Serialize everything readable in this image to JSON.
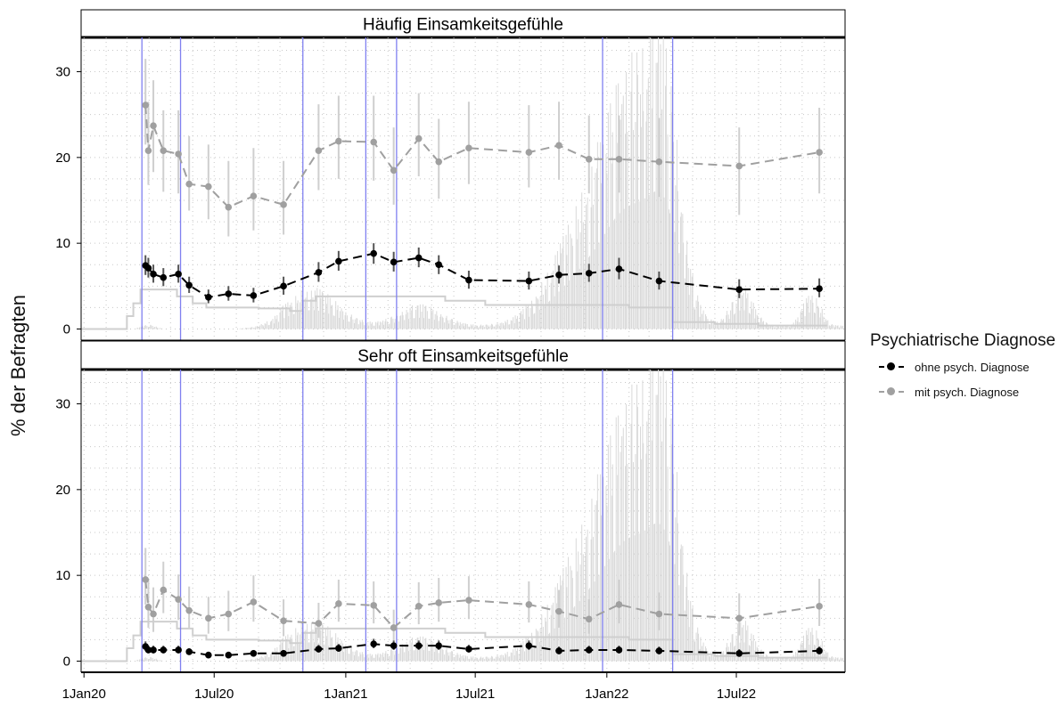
{
  "chart_data": {
    "type": "line",
    "ylabel": "% der Befragten",
    "xlabel": "",
    "x_ticks": [
      "1Jan20",
      "1Jul20",
      "1Jan21",
      "1Jul21",
      "1Jan22",
      "1Jul22"
    ],
    "x_tick_dates": [
      "2020-01-01",
      "2020-07-01",
      "2021-01-01",
      "2021-07-01",
      "2022-01-01",
      "2022-07-01"
    ],
    "xlim": [
      "2019-12-28",
      "2022-11-30"
    ],
    "ylim": [
      -1.3,
      34
    ],
    "y_ticks": [
      0,
      10,
      20,
      30
    ],
    "grid": "dotted",
    "legend": {
      "title": "Psychiatrische Diagnose",
      "position": "right",
      "entries": [
        "ohne psych. Diagnose",
        "mit psych. Diagnose"
      ]
    },
    "colors": {
      "ohne": "#000000",
      "mit": "#a0a0a0",
      "phase_lines": "#8080f0",
      "background": "#d9d9d9",
      "ci_mit": "#cfcfcf",
      "ci_ohne": "#555555"
    },
    "phase_lines": [
      "2020-03-22",
      "2020-05-15",
      "2020-11-02",
      "2021-01-29",
      "2021-03-13",
      "2021-12-26",
      "2022-04-03"
    ],
    "dates": [
      "2020-03-27",
      "2020-03-31",
      "2020-04-07",
      "2020-04-21",
      "2020-05-12",
      "2020-05-27",
      "2020-06-23",
      "2020-07-21",
      "2020-08-25",
      "2020-10-06",
      "2020-11-24",
      "2020-12-22",
      "2021-02-09",
      "2021-03-09",
      "2021-04-13",
      "2021-05-11",
      "2021-06-22",
      "2021-09-14",
      "2021-10-26",
      "2021-12-07",
      "2022-01-18",
      "2022-03-15",
      "2022-07-05",
      "2022-10-25"
    ],
    "panels": [
      {
        "title": "Häufig Einsamkeitsgefühle",
        "series": [
          {
            "name": "mit psych. Diagnose",
            "values": [
              26.1,
              20.8,
              23.7,
              20.8,
              20.4,
              16.9,
              16.6,
              14.2,
              15.5,
              14.5,
              20.8,
              21.9,
              21.8,
              18.5,
              22.2,
              19.5,
              21.1,
              20.6,
              21.4,
              19.8,
              19.8,
              19.5,
              19.0,
              20.6
            ],
            "ci": [
              [
                21.5,
                31.5
              ],
              [
                16.8,
                26.5
              ],
              [
                18.3,
                29
              ],
              [
                16,
                25.5
              ],
              [
                15.8,
                25.5
              ],
              [
                13.8,
                22.5
              ],
              [
                12.8,
                21.5
              ],
              [
                10.8,
                19.6
              ],
              [
                11.5,
                21.1
              ],
              [
                11,
                19.6
              ],
              [
                16.2,
                26.2
              ],
              [
                17.5,
                27.2
              ],
              [
                17.3,
                27.2
              ],
              [
                14.5,
                23.5
              ],
              [
                17.8,
                27.5
              ],
              [
                15.2,
                24.5
              ],
              [
                16.9,
                26.5
              ],
              [
                16.5,
                26.1
              ],
              [
                17.4,
                26.5
              ],
              [
                15.8,
                24.9
              ],
              [
                15.9,
                24.9
              ],
              [
                15.4,
                24.6
              ],
              [
                13.3,
                23.5
              ],
              [
                15.8,
                25.8
              ]
            ]
          },
          {
            "name": "ohne psych. Diagnose",
            "values": [
              7.4,
              7.1,
              6.4,
              6.0,
              6.4,
              5.1,
              3.7,
              4.1,
              3.9,
              5.0,
              6.6,
              7.9,
              8.8,
              7.8,
              8.3,
              7.5,
              5.7,
              5.6,
              6.3,
              6.5,
              7.0,
              5.6,
              4.6,
              4.7
            ],
            "ci": [
              [
                6.3,
                8.6
              ],
              [
                6,
                8.3
              ],
              [
                5.4,
                7.5
              ],
              [
                5,
                7.1
              ],
              [
                5.4,
                7.5
              ],
              [
                4.2,
                6.1
              ],
              [
                3,
                4.6
              ],
              [
                3.3,
                5
              ],
              [
                3.1,
                4.8
              ],
              [
                4,
                6.1
              ],
              [
                5.5,
                7.8
              ],
              [
                6.8,
                9.1
              ],
              [
                7.6,
                10
              ],
              [
                6.7,
                9
              ],
              [
                7.2,
                9.5
              ],
              [
                6.4,
                8.6
              ],
              [
                4.7,
                6.8
              ],
              [
                4.6,
                6.7
              ],
              [
                5.3,
                7.4
              ],
              [
                5.5,
                7.6
              ],
              [
                5.8,
                8.3
              ],
              [
                4.6,
                6.7
              ],
              [
                3.6,
                5.8
              ],
              [
                3.7,
                5.9
              ]
            ]
          }
        ]
      },
      {
        "title": "Sehr oft Einsamkeitsgefühle",
        "series": [
          {
            "name": "mit psych. Diagnose",
            "values": [
              9.5,
              6.3,
              5.5,
              8.3,
              7.2,
              5.9,
              5.0,
              5.5,
              6.9,
              4.7,
              4.4,
              6.7,
              6.5,
              3.9,
              6.4,
              6.8,
              7.1,
              6.6,
              5.8,
              4.9,
              6.6,
              5.5,
              5.0,
              6.4
            ],
            "ci": [
              [
                6.6,
                13.2
              ],
              [
                3.9,
                9.6
              ],
              [
                3.4,
                8.6
              ],
              [
                5.6,
                11.6
              ],
              [
                4.8,
                10.1
              ],
              [
                3.8,
                8.7
              ],
              [
                3.2,
                7.5
              ],
              [
                3.5,
                8.2
              ],
              [
                4.6,
                10
              ],
              [
                2.9,
                7.2
              ],
              [
                2.7,
                6.8
              ],
              [
                4.6,
                9.5
              ],
              [
                4.4,
                9.3
              ],
              [
                2.4,
                6
              ],
              [
                4.3,
                9.2
              ],
              [
                4.6,
                9.7
              ],
              [
                4.9,
                9.9
              ],
              [
                4.5,
                9.3
              ],
              [
                3.9,
                8.3
              ],
              [
                3.2,
                7.2
              ],
              [
                4.4,
                9.5
              ],
              [
                3.6,
                8
              ],
              [
                3,
                7.9
              ],
              [
                4.1,
                9.6
              ]
            ]
          },
          {
            "name": "ohne psych. Diagnose",
            "values": [
              1.7,
              1.3,
              1.3,
              1.3,
              1.3,
              1.1,
              0.7,
              0.7,
              0.9,
              0.9,
              1.4,
              1.5,
              2.0,
              1.8,
              1.8,
              1.8,
              1.4,
              1.8,
              1.2,
              1.3,
              1.3,
              1.2,
              0.9,
              1.2
            ],
            "ci": [
              [
                1.2,
                2.3
              ],
              [
                0.9,
                1.8
              ],
              [
                0.9,
                1.8
              ],
              [
                0.9,
                1.8
              ],
              [
                0.9,
                1.8
              ],
              [
                0.7,
                1.5
              ],
              [
                0.4,
                1.1
              ],
              [
                0.4,
                1.1
              ],
              [
                0.6,
                1.3
              ],
              [
                0.6,
                1.3
              ],
              [
                1,
                1.9
              ],
              [
                1.1,
                2
              ],
              [
                1.5,
                2.6
              ],
              [
                1.3,
                2.4
              ],
              [
                1.3,
                2.4
              ],
              [
                1.3,
                2.4
              ],
              [
                1,
                1.9
              ],
              [
                1.3,
                2.4
              ],
              [
                0.8,
                1.7
              ],
              [
                0.9,
                1.8
              ],
              [
                0.9,
                1.8
              ],
              [
                0.8,
                1.7
              ],
              [
                0.5,
                1.4
              ],
              [
                0.8,
                1.7
              ]
            ]
          }
        ]
      }
    ],
    "stringency_steps": [
      [
        "2019-12-28",
        0
      ],
      [
        "2020-02-15",
        0
      ],
      [
        "2020-03-01",
        1.5
      ],
      [
        "2020-03-10",
        3
      ],
      [
        "2020-03-20",
        4.6
      ],
      [
        "2020-05-10",
        3.8
      ],
      [
        "2020-06-01",
        3.0
      ],
      [
        "2020-06-20",
        2.5
      ],
      [
        "2020-09-01",
        2.4
      ],
      [
        "2020-10-15",
        2.1
      ],
      [
        "2020-11-02",
        3.3
      ],
      [
        "2020-11-20",
        3.8
      ],
      [
        "2021-05-20",
        3.3
      ],
      [
        "2021-07-15",
        2.8
      ],
      [
        "2021-12-01",
        2.8
      ],
      [
        "2022-02-01",
        2.5
      ],
      [
        "2022-04-03",
        0.8
      ],
      [
        "2022-06-01",
        0.6
      ],
      [
        "2022-08-01",
        0.4
      ],
      [
        "2022-11-05",
        0.4
      ]
    ],
    "incidence_peaks": [
      [
        "2020-04-01",
        0.5,
        10
      ],
      [
        "2020-11-15",
        4.5,
        35
      ],
      [
        "2021-04-15",
        2.5,
        30
      ],
      [
        "2021-12-01",
        12,
        45
      ],
      [
        "2022-02-10",
        27,
        38
      ],
      [
        "2022-03-25",
        18,
        20
      ],
      [
        "2022-07-10",
        4.5,
        15
      ],
      [
        "2022-10-15",
        4,
        12
      ]
    ]
  }
}
